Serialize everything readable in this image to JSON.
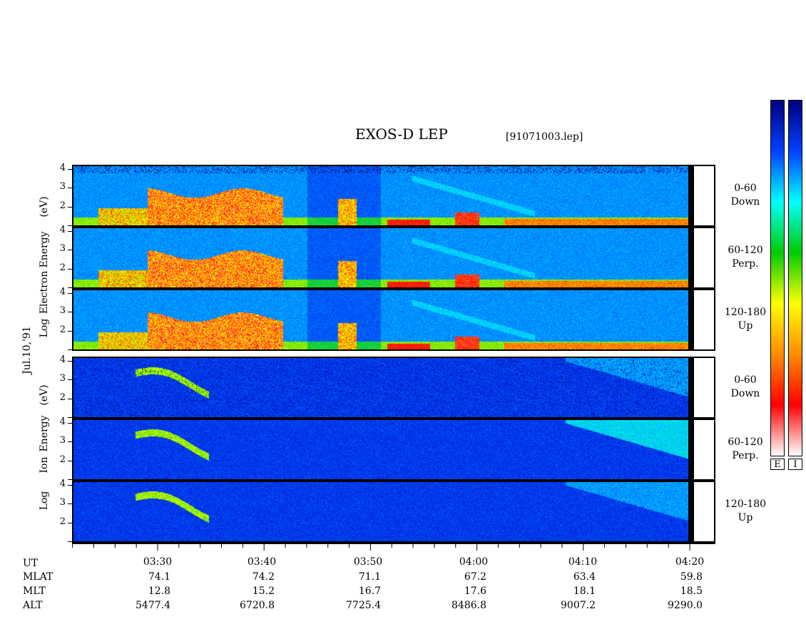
{
  "chart_data": {
    "type": "heatmap",
    "title": "EXOS-D LEP",
    "file_label": "[91071003.lep]",
    "date_label": "Jul.10,'91",
    "xlabel": "UT",
    "x_ticks": [
      "03:30",
      "03:40",
      "03:50",
      "04:00",
      "04:10",
      "04:20"
    ],
    "x_range": [
      "03:22",
      "04:21"
    ],
    "y_ticks": [
      "1",
      "2",
      "3",
      "4"
    ],
    "ylim": [
      1,
      4.15
    ],
    "electron_label": [
      "Log",
      "Electron",
      "Energy",
      "(eV)"
    ],
    "ion_label": [
      "Log",
      "Ion",
      "Energy",
      "(eV)"
    ],
    "panels": [
      {
        "species": "Electron",
        "pitch_range": "0-60",
        "direction": "Down"
      },
      {
        "species": "Electron",
        "pitch_range": "60-120",
        "direction": "Perp."
      },
      {
        "species": "Electron",
        "pitch_range": "120-180",
        "direction": "Up"
      },
      {
        "species": "Ion",
        "pitch_range": "0-60",
        "direction": "Down"
      },
      {
        "species": "Ion",
        "pitch_range": "60-120",
        "direction": "Perp."
      },
      {
        "species": "Ion",
        "pitch_range": "120-180",
        "direction": "Up"
      }
    ],
    "ephemeris": [
      {
        "label": "MLAT",
        "values": [
          "74.1",
          "74.2",
          "71.1",
          "67.2",
          "63.4",
          "59.8"
        ]
      },
      {
        "label": "MLT",
        "values": [
          "12.8",
          "15.2",
          "16.7",
          "17.6",
          "18.1",
          "18.5"
        ]
      },
      {
        "label": "ALT",
        "values": [
          "5477.4",
          "6720.8",
          "7725.4",
          "8486.8",
          "9007.2",
          "9290.0"
        ]
      }
    ],
    "colorbars": [
      {
        "label": "E",
        "colors": [
          "#ffffff",
          "#ff0000",
          "#ff8c00",
          "#ffff00",
          "#00cc00",
          "#00ffff",
          "#0040ff",
          "#000080"
        ]
      },
      {
        "label": "I",
        "colors": [
          "#ffffff",
          "#ff0000",
          "#ff8c00",
          "#ffff00",
          "#00cc00",
          "#00ffff",
          "#0040ff",
          "#000080"
        ]
      }
    ]
  }
}
